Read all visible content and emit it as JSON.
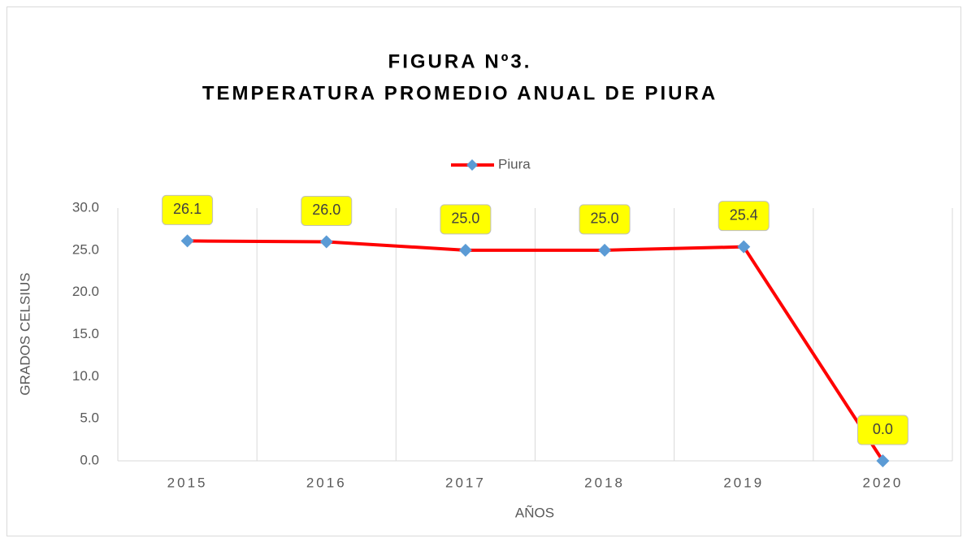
{
  "chart_data": {
    "type": "line",
    "title": [
      "FIGURA Nº3.",
      "TEMPERATURA PROMEDIO ANUAL DE PIURA"
    ],
    "categories": [
      "2015",
      "2016",
      "2017",
      "2018",
      "2019",
      "2020"
    ],
    "series": [
      {
        "name": "Piura",
        "color": "#ff0000",
        "marker_color": "#5b9bd5",
        "values": [
          26.1,
          26.0,
          25.0,
          25.0,
          25.4,
          0.0
        ],
        "value_labels": [
          "26.1",
          "26.0",
          "25.0",
          "25.0",
          "25.4",
          "0.0"
        ]
      }
    ],
    "xlabel": "AÑOS",
    "ylabel": "GRADOS CELSIUS",
    "ylim": [
      0,
      30
    ],
    "yticks": [
      {
        "value": 0,
        "label": "0.0"
      },
      {
        "value": 5,
        "label": "5.0"
      },
      {
        "value": 10,
        "label": "10.0"
      },
      {
        "value": 15,
        "label": "15.0"
      },
      {
        "value": 20,
        "label": "20.0"
      },
      {
        "value": 25,
        "label": "25.0"
      },
      {
        "value": 30,
        "label": "30.0"
      }
    ],
    "legend": "top",
    "label_box_color": "#ffff00"
  }
}
